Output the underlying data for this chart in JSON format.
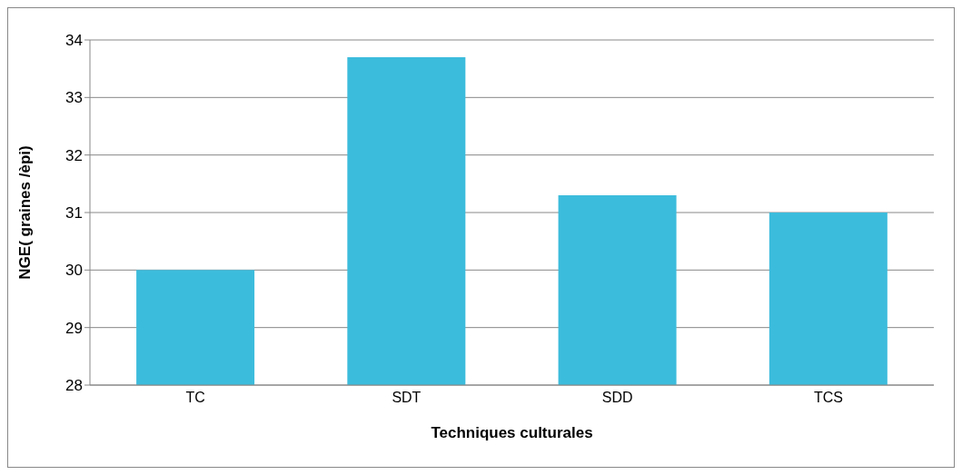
{
  "chart_data": {
    "type": "bar",
    "xlabel": "Techniques culturales",
    "ylabel": "NGE( graines /èpi)",
    "categories": [
      "TC",
      "SDT",
      "SDD",
      "TCS"
    ],
    "values": [
      30.0,
      33.7,
      31.3,
      31.0
    ],
    "color": "#3cbcdc",
    "ylim": [
      28,
      34
    ],
    "yticks": [
      28,
      29,
      30,
      31,
      32,
      33,
      34
    ],
    "grid": "y",
    "legend": false
  }
}
